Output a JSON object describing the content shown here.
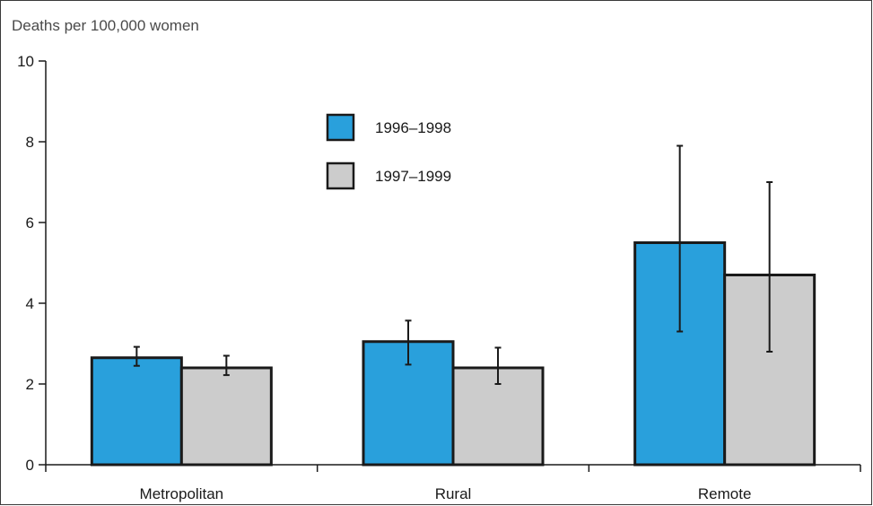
{
  "chart_data": {
    "type": "bar",
    "ylabel": "Deaths per 100,000 women",
    "categories": [
      "Metropolitan",
      "Rural",
      "Remote"
    ],
    "ylim": [
      0,
      10
    ],
    "yticks": [
      0,
      2,
      4,
      6,
      8,
      10
    ],
    "grid": false,
    "legend_position": "top-center",
    "series": [
      {
        "name": "1996–1998",
        "color": "#29a0dc",
        "values": [
          2.65,
          3.05,
          5.5
        ],
        "error_low": [
          2.45,
          2.48,
          3.3
        ],
        "error_high": [
          2.92,
          3.57,
          7.9
        ]
      },
      {
        "name": "1997–1999",
        "color": "#cccccc",
        "values": [
          2.4,
          2.4,
          4.7
        ],
        "error_low": [
          2.22,
          2.0,
          2.8
        ],
        "error_high": [
          2.7,
          2.9,
          7.0
        ]
      }
    ]
  }
}
